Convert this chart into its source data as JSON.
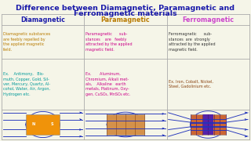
{
  "title_line1": "Difference between Diamagnetic, Paramagnetic and",
  "title_line2": "Ferromagnetic materials",
  "title_color": "#1a1aaa",
  "bg_color": "#f5f5e8",
  "header_row": [
    "Diamagnetic",
    "Paramagnetic",
    "Ferromagnetic"
  ],
  "header_colors": [
    "#1a1aaa",
    "#b87a00",
    "#cc44cc"
  ],
  "row1_texts": [
    "Diamagnetic substances\nare feebly repelled by\nthe applied magnetic\nfield.",
    "Paramagnetic      sub-\nstances    are   feebly\nattracted by the applied\nmagnetic field.",
    "Ferromagnetic      sub-\nstances  are  strongly\nattracted by the applied\nmagnetic field."
  ],
  "row1_colors": [
    "#b87a00",
    "#cc0088",
    "#333333"
  ],
  "row2_texts": [
    "Ex.    Antimony,   Bis-\nmuth, Copper, Gold, Sil-\nver, Mercury, Quartz, Al-\ncohol, Water, Air, Argon,\nHydrogen etc.",
    "Ex.       Aluminum,\nChromium, Alkali met-\nals,    Alkaline   earth\nmetals, Platinum, Oxy-\ngen, CuSO₄, MnSO₄ etc.",
    "Ex. Iron, Cobalt, Nickel,\nSteel, Gadolinium etc."
  ],
  "row2_colors": [
    "#009999",
    "#cc0088",
    "#8B4513"
  ],
  "grid_color": "#aaaaaa",
  "line_color": "#2233bb",
  "dia_block_color": "#f0930a",
  "para_block_color": "#d4914a",
  "ferro_block_color1": "#cc6633",
  "ferro_block_color2": "#6633aa"
}
